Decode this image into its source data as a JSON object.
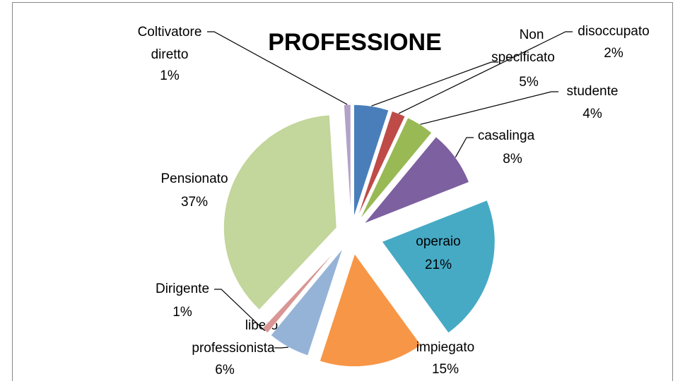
{
  "chart_data": {
    "type": "pie",
    "title": "PROFESSIONE",
    "categories": [
      "Non specificato",
      "disoccupato",
      "studente",
      "casalinga",
      "operaio",
      "impiegato",
      "libero professionista",
      "Dirigente",
      "Pensionato",
      "Coltivatore diretto"
    ],
    "values": [
      5,
      2,
      4,
      8,
      21,
      15,
      6,
      1,
      37,
      1
    ],
    "value_labels": [
      "5%",
      "2%",
      "4%",
      "8%",
      "21%",
      "15%",
      "6%",
      "1%",
      "37%",
      "1%"
    ],
    "colors": [
      "#4a7ebb",
      "#be4b48",
      "#98b954",
      "#7d60a0",
      "#46aac5",
      "#f79646",
      "#95b3d7",
      "#d99694",
      "#c3d69b",
      "#b3a2c7"
    ]
  }
}
